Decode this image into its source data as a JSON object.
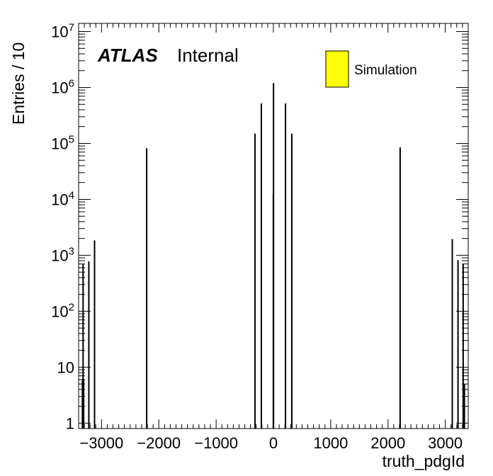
{
  "chart_data": {
    "type": "bar",
    "title": "",
    "xlabel": "truth_pdgId",
    "ylabel": "Entries / 10",
    "xlim": [
      -3400,
      3400
    ],
    "ylim": [
      0.8,
      14000000
    ],
    "y_scale": "log",
    "x_ticks": [
      {
        "value": -3000,
        "label": "−3000"
      },
      {
        "value": -2000,
        "label": "−2000"
      },
      {
        "value": -1000,
        "label": "−1000"
      },
      {
        "value": 0,
        "label": "0"
      },
      {
        "value": 1000,
        "label": "1000"
      },
      {
        "value": 2000,
        "label": "2000"
      },
      {
        "value": 3000,
        "label": "3000"
      }
    ],
    "y_ticks": [
      {
        "value": 1,
        "base": "1",
        "exp": ""
      },
      {
        "value": 10,
        "base": "10",
        "exp": ""
      },
      {
        "value": 100,
        "base": "10",
        "exp": "2"
      },
      {
        "value": 1000,
        "base": "10",
        "exp": "3"
      },
      {
        "value": 10000,
        "base": "10",
        "exp": "4"
      },
      {
        "value": 100000,
        "base": "10",
        "exp": "5"
      },
      {
        "value": 1000000,
        "base": "10",
        "exp": "6"
      },
      {
        "value": 10000000,
        "base": "10",
        "exp": "7"
      }
    ],
    "grid": false,
    "legend_position": "top-right",
    "series": [
      {
        "name": "Simulation",
        "color": "#ffff00",
        "points": [
          {
            "x": -3334,
            "y": 6
          },
          {
            "x": -3322,
            "y": 700
          },
          {
            "x": -3312,
            "y": 6
          },
          {
            "x": -3222,
            "y": 780
          },
          {
            "x": -3122,
            "y": 1850
          },
          {
            "x": -2212,
            "y": 82000
          },
          {
            "x": -321,
            "y": 150000
          },
          {
            "x": -211,
            "y": 520000
          },
          {
            "x": -2,
            "y": 13000
          },
          {
            "x": 2,
            "y": 1200000
          },
          {
            "x": 211,
            "y": 520000
          },
          {
            "x": 321,
            "y": 150000
          },
          {
            "x": 2212,
            "y": 85000
          },
          {
            "x": 3122,
            "y": 1950
          },
          {
            "x": 3222,
            "y": 820
          },
          {
            "x": 3312,
            "y": 700
          },
          {
            "x": 3334,
            "y": 5
          }
        ]
      }
    ]
  },
  "labels": {
    "experiment": "ATLAS",
    "status": "Internal"
  }
}
